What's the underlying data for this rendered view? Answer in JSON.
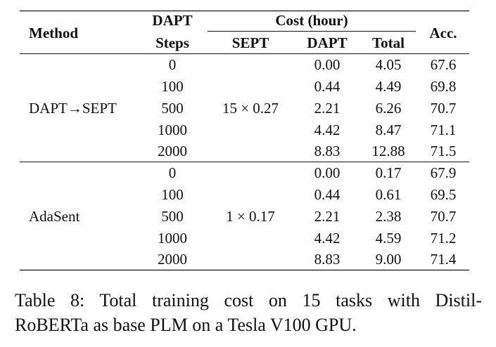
{
  "table": {
    "headers": {
      "method": "Method",
      "dapt_steps_line1": "DAPT",
      "dapt_steps_line2": "Steps",
      "cost_group": "Cost (hour)",
      "sept": "SEPT",
      "dapt": "DAPT",
      "total": "Total",
      "acc": "Acc."
    },
    "groups": [
      {
        "method": "DAPT→SEPT",
        "sept": "15 × 0.27",
        "rows": [
          {
            "steps": "0",
            "dapt": "0.00",
            "total": "4.05",
            "acc": "67.6"
          },
          {
            "steps": "100",
            "dapt": "0.44",
            "total": "4.49",
            "acc": "69.8"
          },
          {
            "steps": "500",
            "dapt": "2.21",
            "total": "6.26",
            "acc": "70.7"
          },
          {
            "steps": "1000",
            "dapt": "4.42",
            "total": "8.47",
            "acc": "71.1"
          },
          {
            "steps": "2000",
            "dapt": "8.83",
            "total": "12.88",
            "acc": "71.5"
          }
        ]
      },
      {
        "method": "AdaSent",
        "sept": "1 × 0.17",
        "rows": [
          {
            "steps": "0",
            "dapt": "0.00",
            "total": "0.17",
            "acc": "67.9"
          },
          {
            "steps": "100",
            "dapt": "0.44",
            "total": "0.61",
            "acc": "69.5"
          },
          {
            "steps": "500",
            "dapt": "2.21",
            "total": "2.38",
            "acc": "70.7"
          },
          {
            "steps": "1000",
            "dapt": "4.42",
            "total": "4.59",
            "acc": "71.2"
          },
          {
            "steps": "2000",
            "dapt": "8.83",
            "total": "9.00",
            "acc": "71.4"
          }
        ]
      }
    ]
  },
  "caption": {
    "line1": "Table 8: Total training cost on 15 tasks with Distil-",
    "line2": "RoBERTa as base PLM on a Tesla V100 GPU."
  }
}
